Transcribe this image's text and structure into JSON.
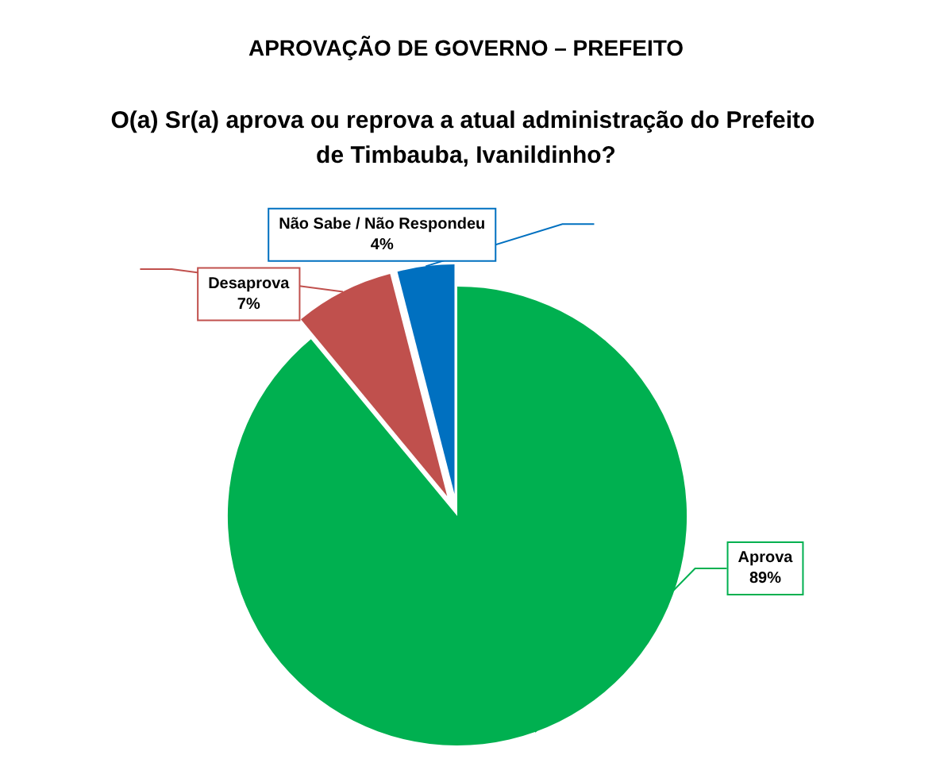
{
  "chart_data": {
    "type": "pie",
    "title": "APROVAÇÃO DE GOVERNO – PREFEITO",
    "subtitle": "O(a) Sr(a) aprova ou reprova a atual administração do Prefeito de Timbauba, Ivanildinho?",
    "categories": [
      "Aprova",
      "Desaprova",
      "Não Sabe / Não Respondeu"
    ],
    "values": [
      89,
      7,
      4
    ],
    "value_labels": [
      "89%",
      "7%",
      "4%"
    ],
    "colors": [
      "#00b050",
      "#c0504d",
      "#0070c0"
    ],
    "legend": false
  }
}
